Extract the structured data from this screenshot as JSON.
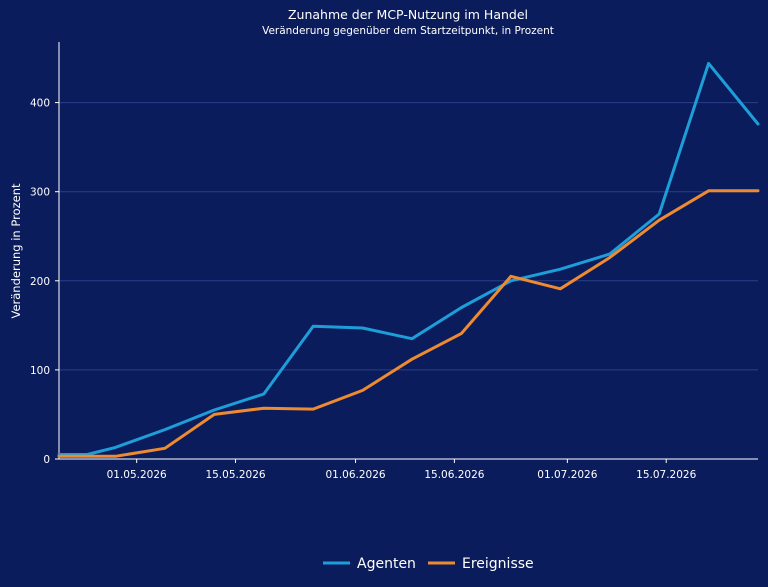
{
  "chart_data": {
    "type": "line",
    "title": "Zunahme der MCP-Nutzung im Handel",
    "subtitle": "Veränderung gegenüber dem Startzeitpunkt, in Prozent",
    "xlabel": "",
    "ylabel": "Veränderung in Prozent",
    "x": [
      "2026-04-20",
      "2026-04-24",
      "2026-04-28",
      "2026-05-05",
      "2026-05-12",
      "2026-05-19",
      "2026-05-26",
      "2026-06-02",
      "2026-06-09",
      "2026-06-16",
      "2026-06-23",
      "2026-06-30",
      "2026-07-07",
      "2026-07-14",
      "2026-07-21",
      "2026-07-28"
    ],
    "x_ticks": [
      "01.05.2026",
      "15.05.2026",
      "01.06.2026",
      "15.06.2026",
      "01.07.2026",
      "15.07.2026"
    ],
    "x_tick_dates": [
      "2026-05-01",
      "2026-05-15",
      "2026-06-01",
      "2026-06-15",
      "2026-07-01",
      "2026-07-15"
    ],
    "xlim": [
      "2026-04-20",
      "2026-07-28"
    ],
    "y_ticks": [
      "0",
      "100",
      "200",
      "300",
      "400"
    ],
    "ylim": [
      0,
      468
    ],
    "grid": "horizontal",
    "legend_position": "bottom-center",
    "series": [
      {
        "name": "Agenten",
        "color": "#1d9ed8",
        "values": [
          5,
          5,
          13,
          33,
          55,
          73,
          149,
          147,
          135,
          170,
          200,
          213,
          230,
          275,
          444,
          376
        ]
      },
      {
        "name": "Ereignisse",
        "color": "#ee8a30",
        "values": [
          3,
          3,
          3,
          12,
          50,
          57,
          56,
          77,
          112,
          141,
          205,
          191,
          226,
          268,
          301,
          301
        ]
      }
    ]
  }
}
